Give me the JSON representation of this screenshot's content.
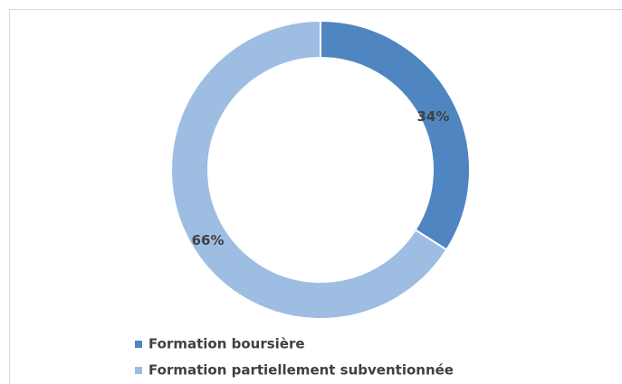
{
  "chart_data": {
    "type": "donut",
    "categories": [
      "Formation boursière",
      "Formation partiellement subventionnée"
    ],
    "values": [
      34,
      66
    ],
    "value_labels": [
      "34%",
      "66%"
    ],
    "colors": [
      "#4f86c1",
      "#9dbde3"
    ],
    "legend": "bottom"
  }
}
